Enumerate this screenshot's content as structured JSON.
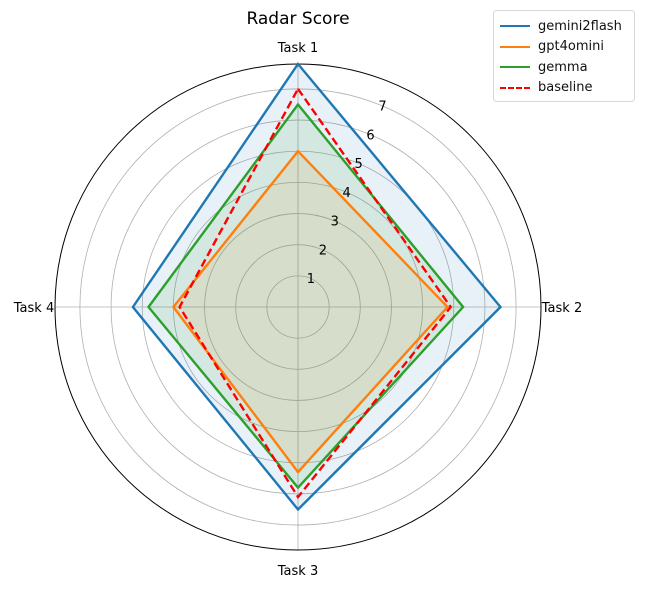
{
  "chart_data": {
    "type": "radar",
    "title": "Radar Score",
    "categories": [
      "Task 1",
      "Task 2",
      "Task 3",
      "Task 4"
    ],
    "r_ticks": [
      "1",
      "2",
      "3",
      "4",
      "5",
      "6",
      "7"
    ],
    "rlim": [
      0,
      7.8
    ],
    "grid": true,
    "legend_position": "top-right",
    "series": [
      {
        "name": "gemini2flash",
        "values": [
          7.8,
          6.5,
          6.5,
          5.3
        ],
        "color": "#1f77b4",
        "style": "solid",
        "filled": true
      },
      {
        "name": "gpt4omini",
        "values": [
          5.0,
          4.8,
          5.3,
          4.0
        ],
        "color": "#ff7f0e",
        "style": "solid",
        "filled": true
      },
      {
        "name": "gemma",
        "values": [
          6.5,
          5.3,
          5.8,
          4.8
        ],
        "color": "#2ca02c",
        "style": "solid",
        "filled": true
      },
      {
        "name": "baseline",
        "values": [
          7.0,
          4.9,
          6.1,
          3.8
        ],
        "color": "#ff0000",
        "style": "dashed",
        "filled": false
      }
    ]
  }
}
